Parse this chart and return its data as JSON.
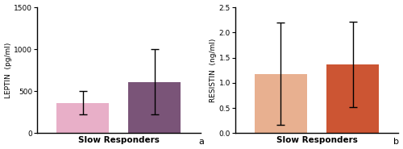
{
  "leptin": {
    "bar_values": [
      360,
      610
    ],
    "bar_errors_upper": [
      140,
      390
    ],
    "bar_colors": [
      "#e8afc8",
      "#7a5478"
    ],
    "ylabel": "LEPTIN  (pg/ml)",
    "xlabel": "Slow Responders",
    "ylim": [
      0,
      1500
    ],
    "yticks": [
      0,
      500,
      1000,
      1500
    ],
    "panel_label": "a"
  },
  "resistin": {
    "bar_values": [
      1.18,
      1.37
    ],
    "bar_errors_upper": [
      1.02,
      0.85
    ],
    "bar_colors": [
      "#e8b090",
      "#cc5533"
    ],
    "ylabel": "RESISTIN  (ng/ml)",
    "xlabel": "Slow Responders",
    "ylim": [
      0.0,
      2.5
    ],
    "yticks": [
      0.0,
      0.5,
      1.0,
      1.5,
      2.0,
      2.5
    ],
    "panel_label": "b"
  },
  "bg_color": "#ffffff",
  "bar_width": 0.32,
  "x_positions": [
    0.28,
    0.72
  ]
}
